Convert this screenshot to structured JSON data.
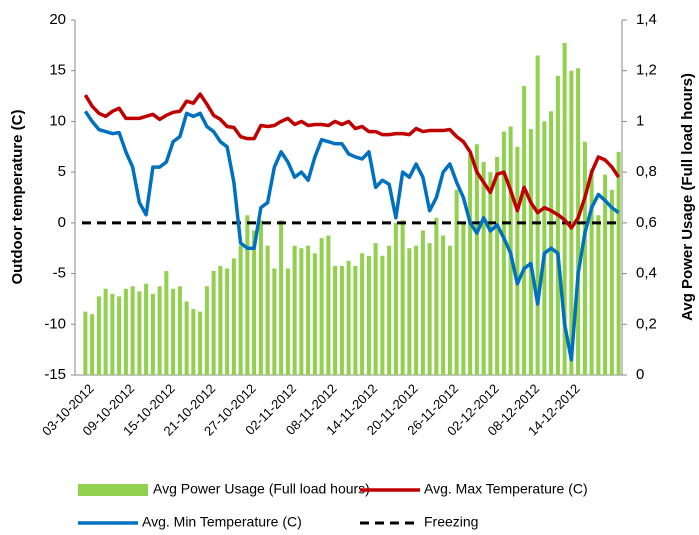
{
  "chart_data": {
    "type": "combo",
    "ylabel": "Outdoor temperature (C)",
    "y2label": "Avg Power Usage (Full load hours)",
    "categories": [
      null,
      "03-10-2012",
      null,
      null,
      null,
      null,
      null,
      "09-10-2012",
      null,
      null,
      null,
      null,
      null,
      "15-10-2012",
      null,
      null,
      null,
      null,
      null,
      "21-10-2012",
      null,
      null,
      null,
      null,
      null,
      "27-10-2012",
      null,
      null,
      null,
      null,
      null,
      "02-11-2012",
      null,
      null,
      null,
      null,
      null,
      "08-11-2012",
      null,
      null,
      null,
      null,
      null,
      "14-11-2012",
      null,
      null,
      null,
      null,
      null,
      "20-11-2012",
      null,
      null,
      null,
      null,
      null,
      "26-11-2012",
      null,
      null,
      null,
      null,
      null,
      "02-12-2012",
      null,
      null,
      null,
      null,
      null,
      "08-12-2012",
      null,
      null,
      null,
      null,
      null,
      "14-12-2012",
      null,
      null,
      null,
      null,
      null,
      null
    ],
    "series": [
      {
        "name": "Avg Power Usage (Full load hours)",
        "kind": "bar",
        "axis": "y2",
        "color": "#92d050",
        "values": [
          0.25,
          0.24,
          0.31,
          0.34,
          0.32,
          0.31,
          0.34,
          0.35,
          0.33,
          0.36,
          0.32,
          0.35,
          0.41,
          0.34,
          0.35,
          0.29,
          0.26,
          0.25,
          0.35,
          0.41,
          0.43,
          0.42,
          0.46,
          0.51,
          0.63,
          0.57,
          0.61,
          0.51,
          0.42,
          0.61,
          0.42,
          0.51,
          0.5,
          0.51,
          0.48,
          0.54,
          0.55,
          0.43,
          0.43,
          0.45,
          0.43,
          0.48,
          0.47,
          0.52,
          0.47,
          0.51,
          0.6,
          0.61,
          0.5,
          0.51,
          0.57,
          0.52,
          0.62,
          0.55,
          0.51,
          0.73,
          0.6,
          0.87,
          0.91,
          0.84,
          0.8,
          0.86,
          0.96,
          0.98,
          0.9,
          1.14,
          0.97,
          1.26,
          1.0,
          1.04,
          1.18,
          1.31,
          1.2,
          1.21,
          0.92,
          0.81,
          0.63,
          0.79,
          0.73,
          0.88
        ]
      },
      {
        "name": "Avg. Max Temperature (C)",
        "kind": "line",
        "color": "#c00000",
        "values": [
          12.6,
          11.5,
          10.8,
          10.5,
          11.0,
          11.3,
          10.3,
          10.3,
          10.3,
          10.5,
          10.7,
          10.2,
          10.6,
          10.9,
          11.0,
          12.0,
          11.8,
          12.7,
          11.7,
          10.6,
          10.2,
          9.5,
          9.4,
          8.5,
          8.3,
          8.3,
          9.6,
          9.5,
          9.6,
          10.0,
          10.3,
          9.7,
          10.0,
          9.6,
          9.7,
          9.7,
          9.6,
          10.0,
          9.7,
          10.0,
          9.3,
          9.5,
          9.0,
          9.0,
          8.7,
          8.7,
          8.8,
          8.8,
          8.7,
          9.3,
          9.0,
          9.1,
          9.1,
          9.1,
          9.2,
          8.5,
          8.0,
          7.0,
          5.0,
          4.0,
          3.0,
          4.8,
          5.0,
          3.2,
          1.2,
          3.5,
          2.0,
          1.0,
          1.5,
          1.2,
          0.8,
          0.3,
          -0.5,
          0.5,
          2.5,
          5.0,
          6.5,
          6.2,
          5.5,
          4.5
        ]
      },
      {
        "name": "Avg. Min Temperature (C)",
        "kind": "line",
        "color": "#0070c0",
        "values": [
          11.0,
          10.0,
          9.2,
          9.0,
          8.8,
          8.9,
          7.0,
          5.5,
          2.0,
          0.8,
          5.5,
          5.5,
          6.0,
          8.0,
          8.5,
          10.8,
          10.5,
          10.8,
          9.5,
          9.0,
          8.0,
          7.5,
          4.0,
          -2.0,
          -2.5,
          -2.5,
          1.5,
          2.0,
          5.5,
          7.0,
          6.0,
          4.5,
          5.0,
          4.2,
          6.5,
          8.2,
          8.0,
          7.8,
          7.8,
          6.8,
          6.5,
          6.3,
          7.0,
          3.5,
          4.2,
          3.8,
          0.5,
          5.0,
          4.5,
          5.8,
          4.5,
          1.2,
          2.5,
          5.0,
          5.8,
          4.0,
          2.5,
          0.0,
          -1.0,
          0.5,
          -0.8,
          -0.2,
          -1.5,
          -3.0,
          -6.0,
          -4.5,
          -4.0,
          -8.0,
          -3.0,
          -2.5,
          -3.0,
          -10.0,
          -13.5,
          -5.0,
          -1.0,
          1.5,
          2.8,
          2.2,
          1.5,
          1.0
        ]
      }
    ],
    "reference_lines": [
      {
        "name": "Freezing",
        "value": 0,
        "color": "#000000",
        "dash": true
      }
    ],
    "ylim": [
      -15,
      20
    ],
    "yticks": [
      -15,
      -10,
      -5,
      0,
      5,
      10,
      15,
      20
    ],
    "y2lim": [
      0,
      1.4
    ],
    "y2ticks": [
      0,
      {
        "value": 0.2,
        "label": "0,2"
      },
      {
        "value": 0.4,
        "label": "0,4"
      },
      {
        "value": 0.6,
        "label": "0,6"
      },
      {
        "value": 0.8,
        "label": "0,8"
      },
      1,
      {
        "value": 1.2,
        "label": "1,2"
      },
      {
        "value": 1.4,
        "label": "1,4"
      }
    ],
    "grid": false,
    "legend": "bottom"
  }
}
